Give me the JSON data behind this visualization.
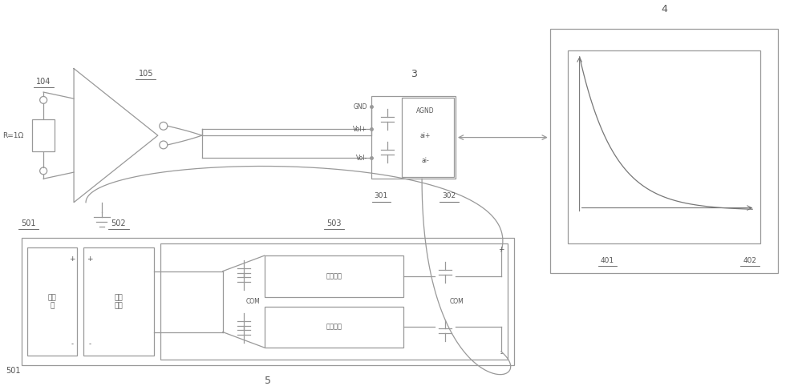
{
  "bg_color": "#ffffff",
  "line_color": "#999999",
  "text_color": "#555555",
  "fig_width": 10.0,
  "fig_height": 4.82,
  "label_104": "104",
  "label_105": "105",
  "label_R": "R=1Ω",
  "label_3": "3",
  "label_4": "4",
  "label_5": "5",
  "label_301": "301",
  "label_302": "302",
  "label_401": "401",
  "label_402": "402",
  "label_501": "501",
  "label_502": "502",
  "label_503": "503",
  "label_GND": "GND",
  "label_Volp": "Vol+",
  "label_Voln": "Vol-",
  "label_AGND": "AGND",
  "label_aip": "ai+",
  "label_ain": "ai-",
  "label_lithium": "锂电\n池",
  "label_switch": "开关\n变换",
  "label_linear1": "线性稳压",
  "label_linear2": "线性稳压",
  "label_COM1": "COM",
  "label_COM2": "COM"
}
